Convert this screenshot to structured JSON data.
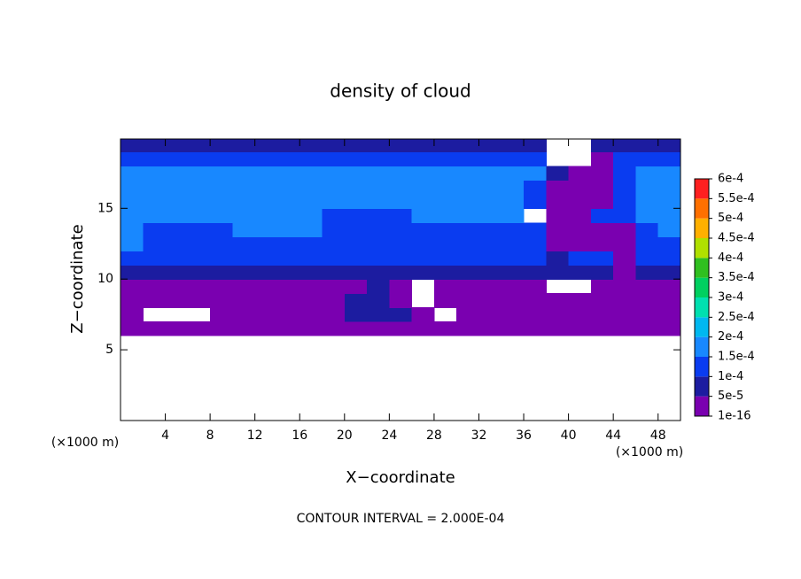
{
  "chart_data": {
    "type": "contour",
    "title": "density of cloud",
    "x_label": "X−coordinate",
    "y_label": "Z−coordinate",
    "x_unit": "(×1000 m)",
    "y_unit": "(×1000 m)",
    "footnote": "CONTOUR INTERVAL = 2.000E-04",
    "xlim": [
      0,
      50
    ],
    "ylim": [
      0,
      19.9
    ],
    "xticks": [
      4,
      8,
      12,
      16,
      20,
      24,
      28,
      32,
      36,
      40,
      44,
      48
    ],
    "yticks": [
      5,
      10,
      15
    ],
    "x": [
      1,
      3,
      5,
      7,
      9,
      11,
      13,
      15,
      17,
      19,
      21,
      23,
      25,
      27,
      29,
      31,
      33,
      35,
      37,
      39,
      41,
      43,
      45,
      47,
      49
    ],
    "y": [
      0.5,
      1.5,
      2.5,
      3.5,
      4.5,
      5.5,
      6.5,
      7.5,
      8.5,
      9.5,
      10.5,
      11.5,
      12.5,
      13.5,
      14.5,
      15.5,
      16.5,
      17.5,
      18.5,
      19.5
    ],
    "values": [
      [
        null,
        null,
        null,
        null,
        null,
        null,
        null,
        null,
        null,
        null,
        null,
        null,
        null,
        null,
        null,
        null,
        null,
        null,
        null,
        null,
        null,
        null,
        null,
        null,
        null
      ],
      [
        null,
        null,
        null,
        null,
        null,
        null,
        null,
        null,
        null,
        null,
        null,
        null,
        null,
        null,
        null,
        null,
        null,
        null,
        null,
        null,
        null,
        null,
        null,
        null,
        null
      ],
      [
        null,
        null,
        null,
        null,
        null,
        null,
        null,
        null,
        null,
        null,
        null,
        null,
        null,
        null,
        null,
        null,
        null,
        null,
        null,
        null,
        null,
        null,
        null,
        null,
        null
      ],
      [
        null,
        null,
        null,
        null,
        null,
        null,
        null,
        null,
        null,
        null,
        null,
        null,
        null,
        null,
        null,
        null,
        null,
        null,
        null,
        null,
        null,
        null,
        null,
        null,
        null
      ],
      [
        null,
        null,
        null,
        null,
        null,
        null,
        null,
        null,
        null,
        null,
        null,
        null,
        null,
        null,
        null,
        null,
        null,
        null,
        null,
        null,
        null,
        null,
        null,
        null,
        null
      ],
      [
        null,
        null,
        null,
        null,
        null,
        null,
        null,
        null,
        null,
        null,
        null,
        null,
        null,
        null,
        null,
        null,
        null,
        null,
        null,
        null,
        null,
        null,
        null,
        null,
        null
      ],
      [
        1e-16,
        1e-16,
        1e-16,
        1e-16,
        1e-16,
        1e-16,
        1e-16,
        1e-16,
        1e-16,
        1e-16,
        1e-16,
        1e-16,
        1e-16,
        1e-16,
        1e-16,
        1e-16,
        1e-16,
        1e-16,
        1e-16,
        1e-16,
        1e-16,
        1e-16,
        1e-16,
        1e-16,
        1e-16
      ],
      [
        1e-16,
        null,
        null,
        null,
        1e-16,
        1e-16,
        1e-16,
        1e-16,
        1e-16,
        1e-16,
        5e-05,
        5e-05,
        5e-05,
        1e-16,
        null,
        1e-16,
        1e-16,
        1e-16,
        1e-16,
        1e-16,
        1e-16,
        1e-16,
        1e-16,
        1e-16,
        1e-16
      ],
      [
        1e-16,
        1e-16,
        1e-16,
        1e-16,
        1e-16,
        1e-16,
        1e-16,
        1e-16,
        1e-16,
        1e-16,
        5e-05,
        5e-05,
        1e-16,
        null,
        1e-16,
        1e-16,
        1e-16,
        1e-16,
        1e-16,
        1e-16,
        1e-16,
        1e-16,
        1e-16,
        1e-16,
        1e-16
      ],
      [
        1e-16,
        1e-16,
        1e-16,
        1e-16,
        1e-16,
        1e-16,
        1e-16,
        1e-16,
        1e-16,
        1e-16,
        1e-16,
        5e-05,
        1e-16,
        null,
        1e-16,
        1e-16,
        1e-16,
        1e-16,
        1e-16,
        null,
        null,
        1e-16,
        1e-16,
        1e-16,
        1e-16
      ],
      [
        5e-05,
        5e-05,
        5e-05,
        5e-05,
        5e-05,
        5e-05,
        5e-05,
        5e-05,
        5e-05,
        5e-05,
        5e-05,
        5e-05,
        5e-05,
        5e-05,
        5e-05,
        5e-05,
        5e-05,
        5e-05,
        5e-05,
        5e-05,
        5e-05,
        5e-05,
        1e-16,
        5e-05,
        5e-05
      ],
      [
        0.0001,
        0.0001,
        0.0001,
        0.0001,
        0.0001,
        0.0001,
        0.0001,
        0.0001,
        0.0001,
        0.0001,
        0.0001,
        0.0001,
        0.0001,
        0.0001,
        0.0001,
        0.0001,
        0.0001,
        0.0001,
        0.0001,
        5e-05,
        0.0001,
        0.0001,
        1e-16,
        0.0001,
        0.0001
      ],
      [
        0.00015,
        0.0001,
        0.0001,
        0.0001,
        0.0001,
        0.0001,
        0.0001,
        0.0001,
        0.0001,
        0.0001,
        0.0001,
        0.0001,
        0.0001,
        0.0001,
        0.0001,
        0.0001,
        0.0001,
        0.0001,
        0.0001,
        1e-16,
        1e-16,
        1e-16,
        1e-16,
        0.0001,
        0.0001
      ],
      [
        0.00015,
        0.0001,
        0.0001,
        0.0001,
        0.0001,
        0.00015,
        0.00015,
        0.00015,
        0.00015,
        0.0001,
        0.0001,
        0.0001,
        0.0001,
        0.0001,
        0.0001,
        0.0001,
        0.0001,
        0.0001,
        0.0001,
        1e-16,
        1e-16,
        1e-16,
        1e-16,
        0.0001,
        0.00015
      ],
      [
        0.00015,
        0.00015,
        0.00015,
        0.00015,
        0.00015,
        0.00015,
        0.00015,
        0.00015,
        0.00015,
        0.0001,
        0.0001,
        0.0001,
        0.0001,
        0.00015,
        0.00015,
        0.00015,
        0.00015,
        0.00015,
        null,
        1e-16,
        1e-16,
        0.0001,
        0.0001,
        0.00015,
        0.00015
      ],
      [
        0.00015,
        0.00015,
        0.00015,
        0.00015,
        0.00015,
        0.00015,
        0.00015,
        0.00015,
        0.00015,
        0.00015,
        0.00015,
        0.00015,
        0.00015,
        0.00015,
        0.00015,
        0.00015,
        0.00015,
        0.00015,
        0.0001,
        1e-16,
        1e-16,
        1e-16,
        0.0001,
        0.00015,
        0.00015
      ],
      [
        0.00015,
        0.00015,
        0.00015,
        0.00015,
        0.00015,
        0.00015,
        0.00015,
        0.00015,
        0.00015,
        0.00015,
        0.00015,
        0.00015,
        0.00015,
        0.00015,
        0.00015,
        0.00015,
        0.00015,
        0.00015,
        0.0001,
        1e-16,
        1e-16,
        1e-16,
        0.0001,
        0.00015,
        0.00015
      ],
      [
        0.00015,
        0.00015,
        0.00015,
        0.00015,
        0.00015,
        0.00015,
        0.00015,
        0.00015,
        0.00015,
        0.00015,
        0.00015,
        0.00015,
        0.00015,
        0.00015,
        0.00015,
        0.00015,
        0.00015,
        0.00015,
        0.00015,
        5e-05,
        1e-16,
        1e-16,
        0.0001,
        0.00015,
        0.00015
      ],
      [
        0.0001,
        0.0001,
        0.0001,
        0.0001,
        0.0001,
        0.0001,
        0.0001,
        0.0001,
        0.0001,
        0.0001,
        0.0001,
        0.0001,
        0.0001,
        0.0001,
        0.0001,
        0.0001,
        0.0001,
        0.0001,
        0.0001,
        null,
        null,
        1e-16,
        0.0001,
        0.0001,
        0.0001
      ],
      [
        5e-05,
        5e-05,
        5e-05,
        5e-05,
        5e-05,
        5e-05,
        5e-05,
        5e-05,
        5e-05,
        5e-05,
        5e-05,
        5e-05,
        5e-05,
        5e-05,
        5e-05,
        5e-05,
        5e-05,
        5e-05,
        5e-05,
        null,
        null,
        5e-05,
        5e-05,
        5e-05,
        5e-05
      ]
    ],
    "clim": [
      1e-16,
      0.0006
    ],
    "levels": [
      {
        "value": 1e-16,
        "label": "1e-16"
      },
      {
        "value": 5e-05,
        "label": "5e-5"
      },
      {
        "value": 0.0001,
        "label": "1e-4"
      },
      {
        "value": 0.00015,
        "label": "1.5e-4"
      },
      {
        "value": 0.0002,
        "label": "2e-4"
      },
      {
        "value": 0.00025,
        "label": "2.5e-4"
      },
      {
        "value": 0.0003,
        "label": "3e-4"
      },
      {
        "value": 0.00035,
        "label": "3.5e-4"
      },
      {
        "value": 0.0004,
        "label": "4e-4"
      },
      {
        "value": 0.00045,
        "label": "4.5e-4"
      },
      {
        "value": 0.0005,
        "label": "5e-4"
      },
      {
        "value": 0.00055,
        "label": "5.5e-4"
      },
      {
        "value": 0.0006,
        "label": "6e-4"
      }
    ],
    "colors": [
      "#7a00b0",
      "#1c1ca0",
      "#0a3cf0",
      "#1888ff",
      "#00b8f0",
      "#00e0b0",
      "#00d060",
      "#30c020",
      "#b0e000",
      "#ffb000",
      "#ff7000",
      "#ff2020",
      "#ff9090"
    ]
  }
}
